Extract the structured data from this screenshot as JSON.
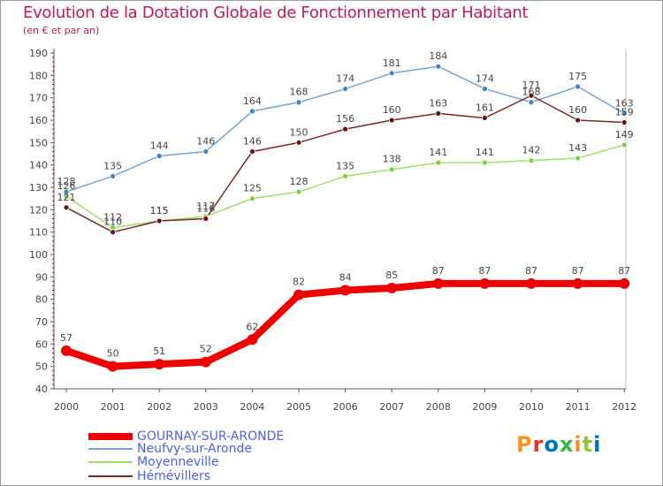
{
  "title": "Evolution de la Dotation Globale de Fonctionnement par Habitant",
  "subtitle": "(en € et par an)",
  "logo": {
    "text": "Proxiti",
    "colors": [
      "#f7931e",
      "#e8312f",
      "#0072bc",
      "#39b54a",
      "#f7931e",
      "#8dc63f",
      "#0072bc"
    ]
  },
  "chart_data": {
    "type": "line",
    "title": "Evolution de la Dotation Globale de Fonctionnement par Habitant",
    "subtitle": "(en € et par an)",
    "xlabel": "",
    "ylabel": "",
    "x": [
      "2000",
      "2001",
      "2002",
      "2003",
      "2004",
      "2005",
      "2006",
      "2007",
      "2008",
      "2009",
      "2010",
      "2011",
      "2012"
    ],
    "ylim": [
      40,
      190
    ],
    "yticks": [
      40,
      50,
      60,
      70,
      80,
      90,
      100,
      110,
      120,
      130,
      140,
      150,
      160,
      170,
      180,
      190
    ],
    "series": [
      {
        "name": "GOURNAY-SUR-ARONDE",
        "color": "#ee0000",
        "dot": "#ee0000",
        "values": [
          57,
          50,
          51,
          52,
          62,
          82,
          84,
          85,
          87,
          87,
          87,
          87,
          87
        ],
        "labels": [
          "57",
          "50",
          "51",
          "52",
          "62",
          "82",
          "84",
          "85",
          "87",
          "87",
          "87",
          "87",
          "87"
        ]
      },
      {
        "name": "Neufvy-sur-Aronde",
        "color": "#6fa6d6",
        "dot": "#3d85c6",
        "values": [
          128,
          135,
          144,
          146,
          164,
          168,
          174,
          181,
          184,
          174,
          168,
          175,
          163
        ],
        "labels": [
          "128",
          "135",
          "144",
          "146",
          "164",
          "168",
          "174",
          "181",
          "184",
          "174",
          "168",
          "175",
          "163"
        ]
      },
      {
        "name": "Moyenneville",
        "color": "#9de06a",
        "dot": "#7dcf3e",
        "values": [
          126,
          112,
          115,
          117,
          125,
          128,
          135,
          138,
          141,
          141,
          142,
          143,
          149
        ],
        "labels": [
          "126",
          "112",
          "115",
          "117",
          "125",
          "128",
          "135",
          "138",
          "141",
          "141",
          "142",
          "143",
          "149"
        ]
      },
      {
        "name": "Hémévillers",
        "color": "#7a2727",
        "dot": "#6b1111",
        "values": [
          121,
          110,
          115,
          116,
          146,
          150,
          156,
          160,
          163,
          161,
          171,
          160,
          159
        ],
        "labels": [
          "121",
          "110",
          "115",
          "116",
          "146",
          "150",
          "156",
          "160",
          "163",
          "161",
          "171",
          "160",
          "159"
        ]
      }
    ],
    "grid": false,
    "legend": "bottom-left"
  }
}
